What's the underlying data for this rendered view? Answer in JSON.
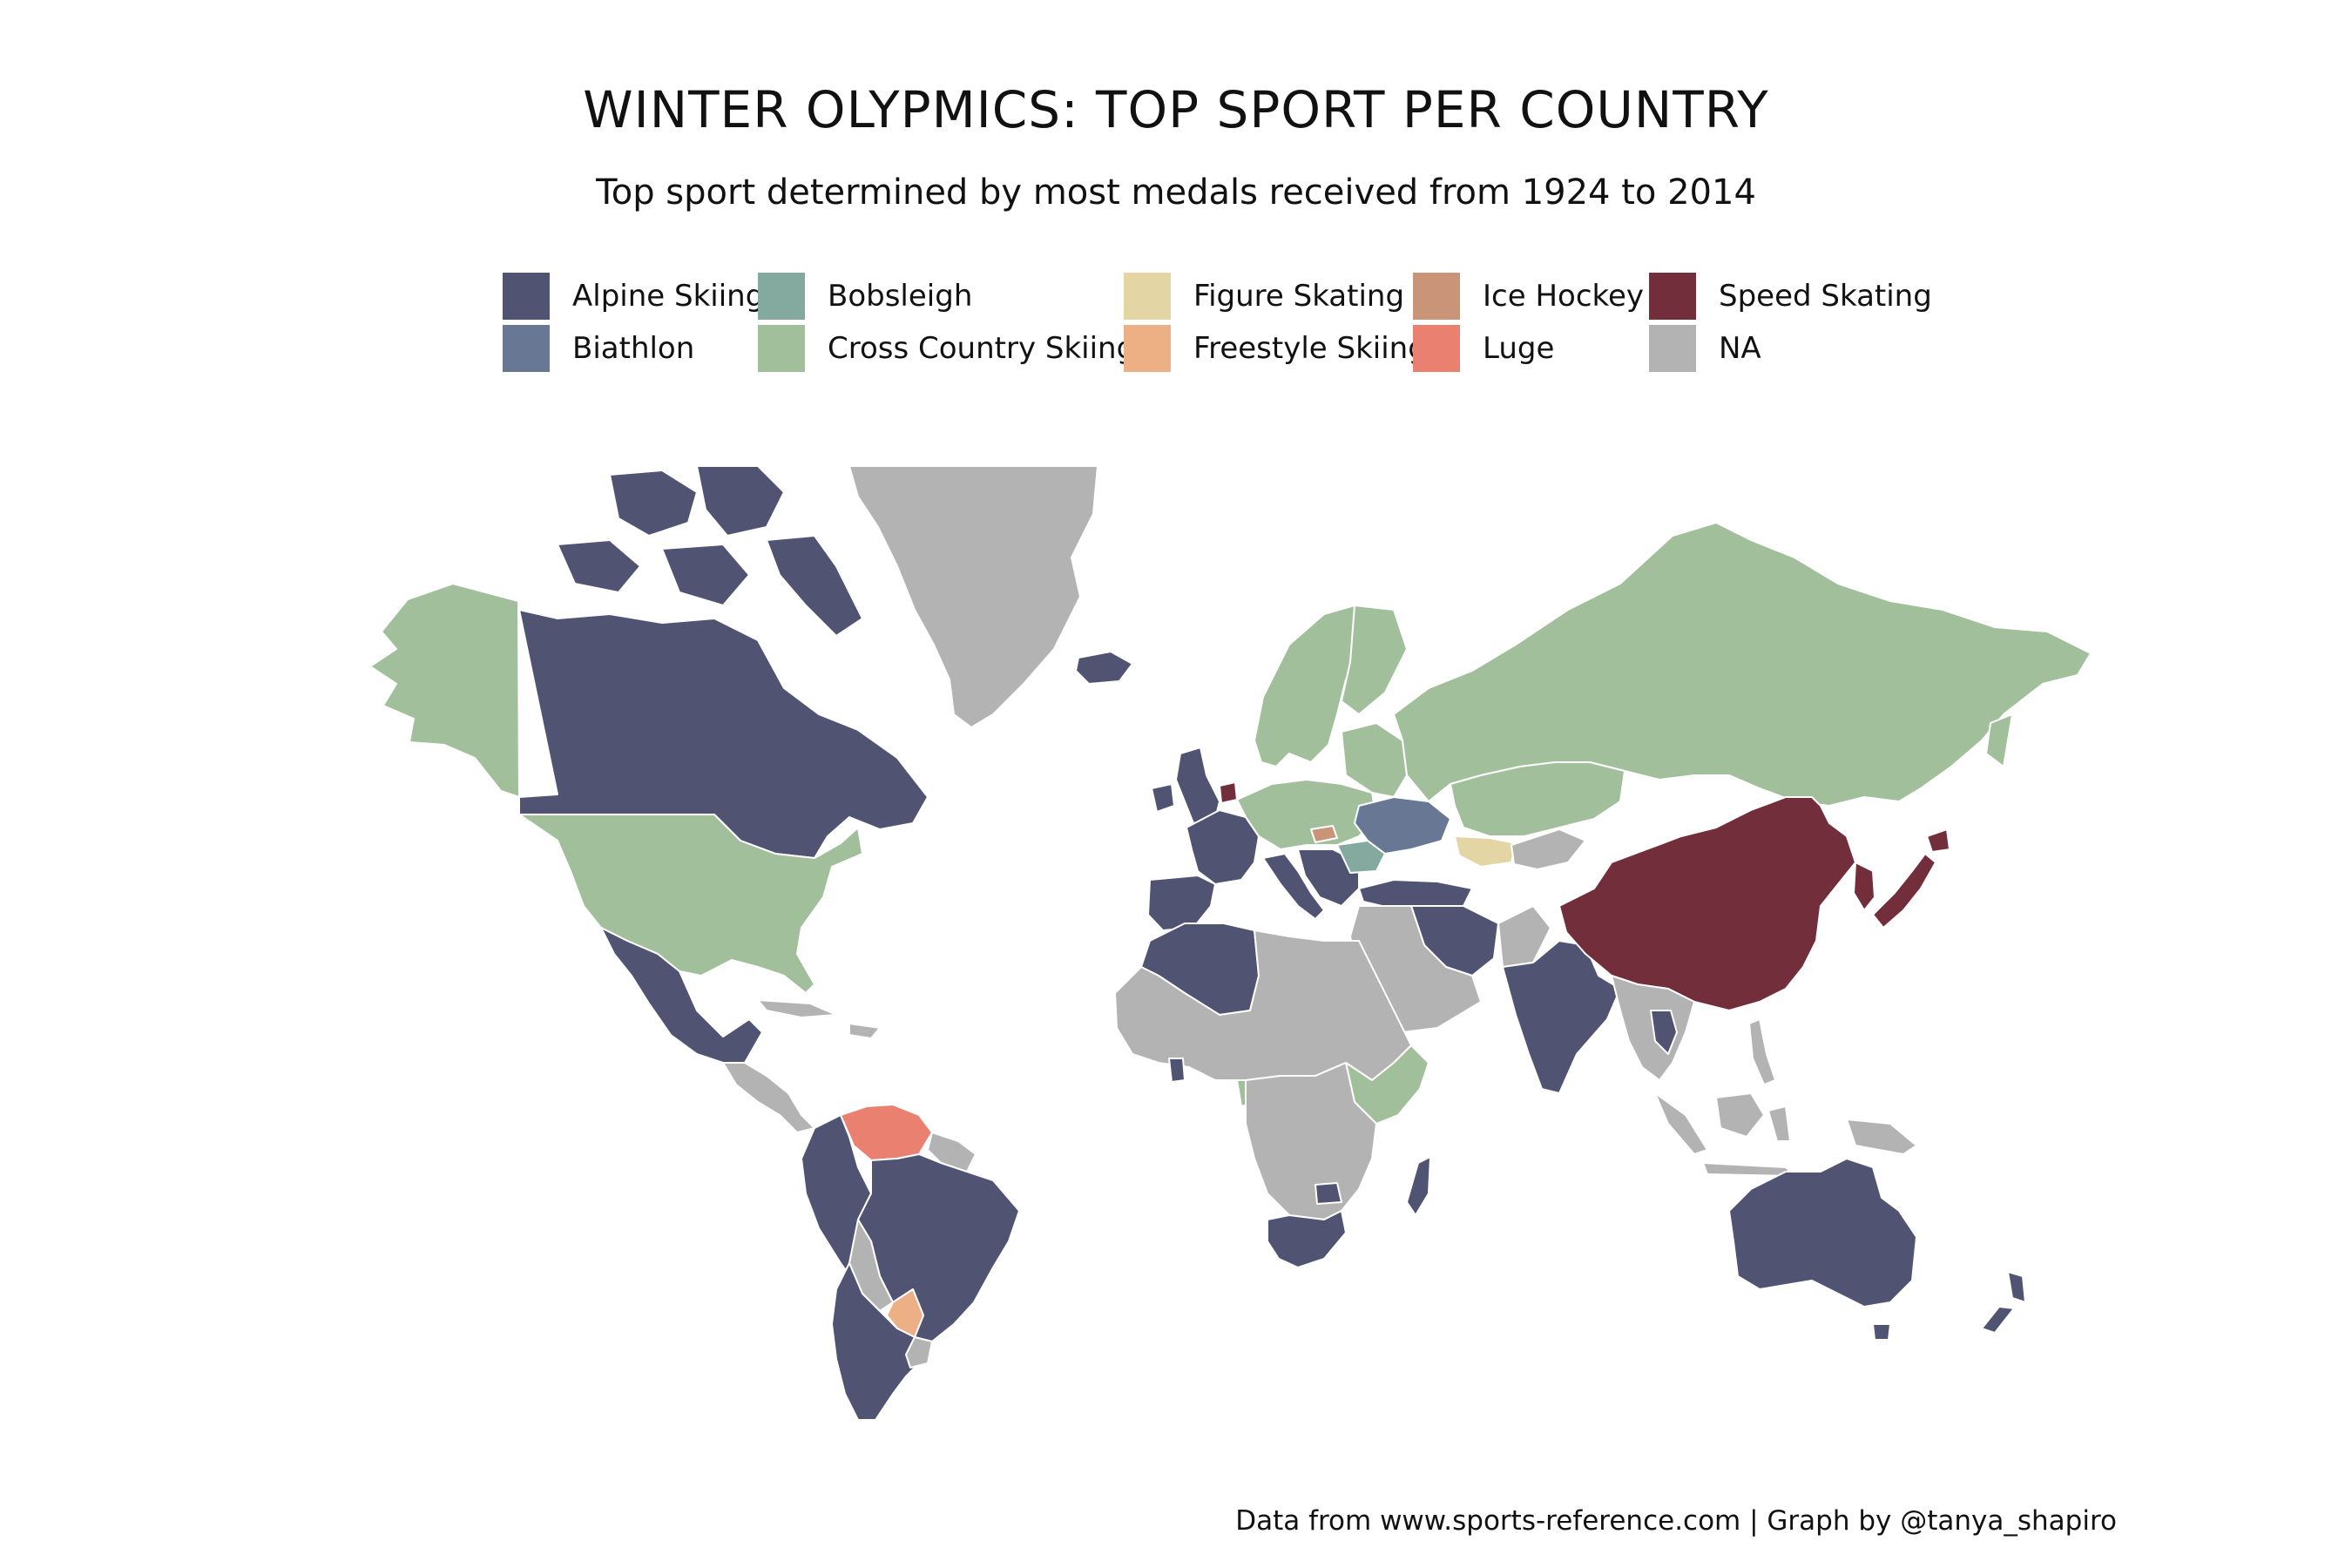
{
  "title": "WINTER OLYPMICS: TOP SPORT PER COUNTRY",
  "subtitle": "Top sport determined by most medals received from 1924 to 2014",
  "caption": "Data from www.sports-reference.com | Graph by @tanya_shapiro",
  "legend": [
    {
      "key": "alpine",
      "label": "Alpine Skiing",
      "color": "#505372"
    },
    {
      "key": "biathlon",
      "label": "Biathlon",
      "color": "#677794"
    },
    {
      "key": "bobsleigh",
      "label": "Bobsleigh",
      "color": "#84aaa0"
    },
    {
      "key": "cross",
      "label": "Cross Country Skiing",
      "color": "#a2bf9c"
    },
    {
      "key": "figure",
      "label": "Figure Skating",
      "color": "#e3d6a4"
    },
    {
      "key": "freestyle",
      "label": "Freestyle Skiing",
      "color": "#edb085"
    },
    {
      "key": "hockey",
      "label": "Ice Hockey",
      "color": "#c99478"
    },
    {
      "key": "luge",
      "label": "Luge",
      "color": "#e98070"
    },
    {
      "key": "speed",
      "label": "Speed Skating",
      "color": "#722e3b"
    },
    {
      "key": "na",
      "label": "NA",
      "color": "#b3b3b3"
    }
  ],
  "regions": [
    {
      "name": "Greenland",
      "sport": "na"
    },
    {
      "name": "Canada",
      "sport": "alpine"
    },
    {
      "name": "Alaska",
      "sport": "cross"
    },
    {
      "name": "United States",
      "sport": "cross"
    },
    {
      "name": "Mexico",
      "sport": "alpine"
    },
    {
      "name": "Central America",
      "sport": "na"
    },
    {
      "name": "Venezuela",
      "sport": "luge"
    },
    {
      "name": "Brazil",
      "sport": "alpine"
    },
    {
      "name": "Colombia",
      "sport": "alpine"
    },
    {
      "name": "Bolivia",
      "sport": "na"
    },
    {
      "name": "Paraguay",
      "sport": "freestyle"
    },
    {
      "name": "Argentina",
      "sport": "alpine"
    },
    {
      "name": "Uruguay",
      "sport": "na"
    },
    {
      "name": "Iceland",
      "sport": "alpine"
    },
    {
      "name": "United Kingdom",
      "sport": "alpine"
    },
    {
      "name": "France",
      "sport": "alpine"
    },
    {
      "name": "Spain",
      "sport": "alpine"
    },
    {
      "name": "Netherlands",
      "sport": "speed"
    },
    {
      "name": "Scandinavia",
      "sport": "cross"
    },
    {
      "name": "Central Europe",
      "sport": "cross"
    },
    {
      "name": "Italy",
      "sport": "alpine"
    },
    {
      "name": "Balkans",
      "sport": "alpine"
    },
    {
      "name": "Ukraine",
      "sport": "biathlon"
    },
    {
      "name": "Romania",
      "sport": "bobsleigh"
    },
    {
      "name": "Slovakia",
      "sport": "hockey"
    },
    {
      "name": "Turkey",
      "sport": "alpine"
    },
    {
      "name": "Russia",
      "sport": "cross"
    },
    {
      "name": "Kazakhstan",
      "sport": "cross"
    },
    {
      "name": "Uzbekistan",
      "sport": "figure"
    },
    {
      "name": "Iran",
      "sport": "alpine"
    },
    {
      "name": "Middle East",
      "sport": "na"
    },
    {
      "name": "India",
      "sport": "alpine"
    },
    {
      "name": "China",
      "sport": "speed"
    },
    {
      "name": "Japan",
      "sport": "speed"
    },
    {
      "name": "Korea",
      "sport": "speed"
    },
    {
      "name": "Southeast Asia",
      "sport": "na"
    },
    {
      "name": "Thailand",
      "sport": "alpine"
    },
    {
      "name": "Indonesia",
      "sport": "na"
    },
    {
      "name": "Morocco Algeria",
      "sport": "alpine"
    },
    {
      "name": "North Africa",
      "sport": "na"
    },
    {
      "name": "Ethiopia Kenya",
      "sport": "cross"
    },
    {
      "name": "Central Africa",
      "sport": "na"
    },
    {
      "name": "South Africa",
      "sport": "alpine"
    },
    {
      "name": "Madagascar",
      "sport": "alpine"
    },
    {
      "name": "Australia",
      "sport": "alpine"
    },
    {
      "name": "New Zealand",
      "sport": "alpine"
    }
  ]
}
